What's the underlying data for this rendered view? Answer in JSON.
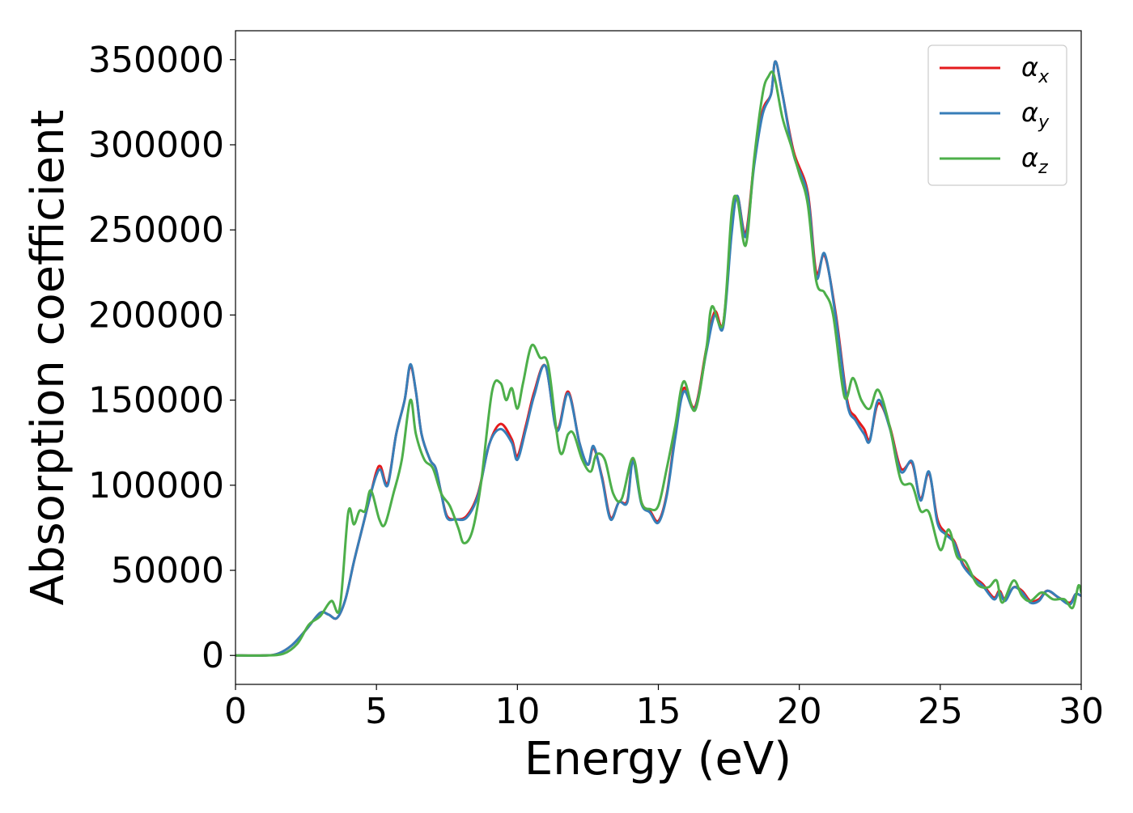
{
  "chart_data": {
    "type": "line",
    "title": "",
    "xlabel": "Energy (eV)",
    "ylabel": "Absorption coefficient",
    "xlim": [
      0,
      30
    ],
    "ylim": [
      -17000,
      367000
    ],
    "xticks": [
      0,
      5,
      10,
      15,
      20,
      25,
      30
    ],
    "xtick_labels": [
      "0",
      "5",
      "10",
      "15",
      "20",
      "25",
      "30"
    ],
    "yticks": [
      0,
      50000,
      100000,
      150000,
      200000,
      250000,
      300000,
      350000
    ],
    "ytick_labels": [
      "0",
      "50000",
      "100000",
      "150000",
      "200000",
      "250000",
      "300000",
      "350000"
    ],
    "grid": false,
    "legend_position": "top-right",
    "series": [
      {
        "name": "αx",
        "legend_main": "α",
        "legend_sub": "x",
        "color": "#e41a1c",
        "points": [
          [
            0,
            0
          ],
          [
            1,
            0
          ],
          [
            1.5,
            1000
          ],
          [
            2,
            6000
          ],
          [
            2.5,
            15000
          ],
          [
            3,
            25000
          ],
          [
            3.3,
            24000
          ],
          [
            3.6,
            22000
          ],
          [
            3.9,
            33000
          ],
          [
            4.2,
            55000
          ],
          [
            4.5,
            75000
          ],
          [
            4.8,
            95000
          ],
          [
            5,
            108000
          ],
          [
            5.15,
            111000
          ],
          [
            5.4,
            101000
          ],
          [
            5.7,
            130000
          ],
          [
            6,
            150000
          ],
          [
            6.2,
            170000
          ],
          [
            6.4,
            155000
          ],
          [
            6.6,
            130000
          ],
          [
            6.9,
            115000
          ],
          [
            7.1,
            110000
          ],
          [
            7.3,
            95000
          ],
          [
            7.5,
            82000
          ],
          [
            7.8,
            80000
          ],
          [
            8.2,
            82000
          ],
          [
            8.6,
            95000
          ],
          [
            9,
            124000
          ],
          [
            9.4,
            136000
          ],
          [
            9.8,
            127000
          ],
          [
            10,
            117000
          ],
          [
            10.3,
            135000
          ],
          [
            10.6,
            155000
          ],
          [
            11,
            170000
          ],
          [
            11.4,
            133000
          ],
          [
            11.8,
            155000
          ],
          [
            12.2,
            125000
          ],
          [
            12.5,
            112000
          ],
          [
            12.7,
            122000
          ],
          [
            13,
            105000
          ],
          [
            13.3,
            81000
          ],
          [
            13.6,
            90000
          ],
          [
            13.9,
            91000
          ],
          [
            14.1,
            115000
          ],
          [
            14.4,
            90000
          ],
          [
            14.7,
            85000
          ],
          [
            15,
            79000
          ],
          [
            15.3,
            95000
          ],
          [
            15.6,
            130000
          ],
          [
            15.9,
            157000
          ],
          [
            16.3,
            146000
          ],
          [
            16.7,
            180000
          ],
          [
            17,
            202000
          ],
          [
            17.3,
            195000
          ],
          [
            17.6,
            250000
          ],
          [
            17.8,
            270000
          ],
          [
            18.1,
            248000
          ],
          [
            18.4,
            290000
          ],
          [
            18.7,
            320000
          ],
          [
            19,
            330000
          ],
          [
            19.15,
            349000
          ],
          [
            19.4,
            330000
          ],
          [
            19.8,
            296000
          ],
          [
            20.3,
            272000
          ],
          [
            20.6,
            225000
          ],
          [
            20.9,
            235000
          ],
          [
            21.3,
            200000
          ],
          [
            21.7,
            150000
          ],
          [
            22,
            140000
          ],
          [
            22.3,
            133000
          ],
          [
            22.5,
            127000
          ],
          [
            22.8,
            148000
          ],
          [
            23.2,
            135000
          ],
          [
            23.6,
            110000
          ],
          [
            24,
            113000
          ],
          [
            24.3,
            92000
          ],
          [
            24.6,
            107000
          ],
          [
            24.9,
            80000
          ],
          [
            25.2,
            72000
          ],
          [
            25.5,
            67000
          ],
          [
            25.8,
            54000
          ],
          [
            26.2,
            46000
          ],
          [
            26.5,
            42000
          ],
          [
            26.9,
            34000
          ],
          [
            27.1,
            38000
          ],
          [
            27.3,
            33000
          ],
          [
            27.6,
            40000
          ],
          [
            27.9,
            38000
          ],
          [
            28.2,
            32000
          ],
          [
            28.5,
            33000
          ],
          [
            28.8,
            38000
          ],
          [
            29.2,
            34000
          ],
          [
            29.6,
            31000
          ],
          [
            29.8,
            36000
          ],
          [
            30,
            35000
          ]
        ]
      },
      {
        "name": "αy",
        "legend_main": "α",
        "legend_sub": "y",
        "color": "#377eb8",
        "points": [
          [
            0,
            0
          ],
          [
            1,
            0
          ],
          [
            1.5,
            1000
          ],
          [
            2,
            6000
          ],
          [
            2.5,
            15000
          ],
          [
            3,
            25000
          ],
          [
            3.3,
            24000
          ],
          [
            3.6,
            22000
          ],
          [
            3.9,
            33000
          ],
          [
            4.2,
            55000
          ],
          [
            4.5,
            75000
          ],
          [
            4.8,
            95000
          ],
          [
            5,
            106000
          ],
          [
            5.15,
            109000
          ],
          [
            5.4,
            100000
          ],
          [
            5.7,
            130000
          ],
          [
            6,
            150000
          ],
          [
            6.2,
            171000
          ],
          [
            6.4,
            155000
          ],
          [
            6.6,
            130000
          ],
          [
            6.9,
            115000
          ],
          [
            7.1,
            110000
          ],
          [
            7.3,
            95000
          ],
          [
            7.5,
            81000
          ],
          [
            7.8,
            80000
          ],
          [
            8.2,
            81000
          ],
          [
            8.6,
            94000
          ],
          [
            9,
            124000
          ],
          [
            9.4,
            133000
          ],
          [
            9.8,
            125000
          ],
          [
            10,
            115000
          ],
          [
            10.3,
            133000
          ],
          [
            10.6,
            153000
          ],
          [
            11,
            170000
          ],
          [
            11.4,
            132000
          ],
          [
            11.8,
            154000
          ],
          [
            12.2,
            125000
          ],
          [
            12.5,
            112000
          ],
          [
            12.7,
            123000
          ],
          [
            13,
            104000
          ],
          [
            13.3,
            80000
          ],
          [
            13.6,
            90000
          ],
          [
            13.9,
            90000
          ],
          [
            14.1,
            114000
          ],
          [
            14.4,
            89000
          ],
          [
            14.7,
            84000
          ],
          [
            15,
            78000
          ],
          [
            15.3,
            94000
          ],
          [
            15.6,
            128000
          ],
          [
            15.9,
            155000
          ],
          [
            16.3,
            145000
          ],
          [
            16.7,
            178000
          ],
          [
            17,
            200000
          ],
          [
            17.3,
            193000
          ],
          [
            17.6,
            248000
          ],
          [
            17.8,
            270000
          ],
          [
            18.1,
            246000
          ],
          [
            18.4,
            288000
          ],
          [
            18.7,
            318000
          ],
          [
            19,
            330000
          ],
          [
            19.15,
            349000
          ],
          [
            19.4,
            330000
          ],
          [
            19.8,
            294000
          ],
          [
            20.3,
            270000
          ],
          [
            20.6,
            222000
          ],
          [
            20.9,
            236000
          ],
          [
            21.3,
            198000
          ],
          [
            21.7,
            148000
          ],
          [
            22,
            138000
          ],
          [
            22.3,
            130000
          ],
          [
            22.5,
            126000
          ],
          [
            22.8,
            150000
          ],
          [
            23.2,
            134000
          ],
          [
            23.6,
            108000
          ],
          [
            24,
            114000
          ],
          [
            24.3,
            91000
          ],
          [
            24.6,
            108000
          ],
          [
            24.9,
            78000
          ],
          [
            25.2,
            71000
          ],
          [
            25.5,
            66000
          ],
          [
            25.8,
            53000
          ],
          [
            26.2,
            45000
          ],
          [
            26.5,
            41000
          ],
          [
            26.9,
            33000
          ],
          [
            27.1,
            37000
          ],
          [
            27.3,
            32000
          ],
          [
            27.6,
            40000
          ],
          [
            27.9,
            37000
          ],
          [
            28.2,
            31000
          ],
          [
            28.5,
            32000
          ],
          [
            28.8,
            38000
          ],
          [
            29.2,
            34000
          ],
          [
            29.6,
            30000
          ],
          [
            29.8,
            36000
          ],
          [
            30,
            35000
          ]
        ]
      },
      {
        "name": "αz",
        "legend_main": "α",
        "legend_sub": "z",
        "color": "#4daf4a",
        "points": [
          [
            0,
            0
          ],
          [
            1,
            0
          ],
          [
            1.7,
            1000
          ],
          [
            2.2,
            7000
          ],
          [
            2.6,
            18000
          ],
          [
            3,
            23000
          ],
          [
            3.4,
            32000
          ],
          [
            3.7,
            28000
          ],
          [
            4,
            84000
          ],
          [
            4.2,
            77000
          ],
          [
            4.4,
            85000
          ],
          [
            4.6,
            85000
          ],
          [
            4.8,
            97000
          ],
          [
            5.1,
            80000
          ],
          [
            5.3,
            77000
          ],
          [
            5.6,
            95000
          ],
          [
            5.9,
            115000
          ],
          [
            6.2,
            150000
          ],
          [
            6.4,
            130000
          ],
          [
            6.7,
            115000
          ],
          [
            7,
            110000
          ],
          [
            7.3,
            95000
          ],
          [
            7.6,
            88000
          ],
          [
            7.9,
            75000
          ],
          [
            8.1,
            66000
          ],
          [
            8.4,
            73000
          ],
          [
            8.7,
            100000
          ],
          [
            9.1,
            155000
          ],
          [
            9.4,
            160000
          ],
          [
            9.6,
            150000
          ],
          [
            9.8,
            157000
          ],
          [
            10,
            145000
          ],
          [
            10.2,
            160000
          ],
          [
            10.5,
            182000
          ],
          [
            10.8,
            175000
          ],
          [
            11.1,
            170000
          ],
          [
            11.5,
            120000
          ],
          [
            11.8,
            130000
          ],
          [
            12,
            130000
          ],
          [
            12.3,
            115000
          ],
          [
            12.6,
            108000
          ],
          [
            12.8,
            118000
          ],
          [
            13.1,
            115000
          ],
          [
            13.4,
            95000
          ],
          [
            13.7,
            92000
          ],
          [
            14.1,
            116000
          ],
          [
            14.4,
            90000
          ],
          [
            14.7,
            86000
          ],
          [
            15,
            88000
          ],
          [
            15.3,
            110000
          ],
          [
            15.6,
            135000
          ],
          [
            15.9,
            161000
          ],
          [
            16.3,
            144000
          ],
          [
            16.7,
            180000
          ],
          [
            16.9,
            205000
          ],
          [
            17.3,
            195000
          ],
          [
            17.6,
            260000
          ],
          [
            17.8,
            268000
          ],
          [
            18.1,
            241000
          ],
          [
            18.4,
            292000
          ],
          [
            18.7,
            330000
          ],
          [
            18.9,
            340000
          ],
          [
            19.1,
            341000
          ],
          [
            19.4,
            316000
          ],
          [
            19.7,
            300000
          ],
          [
            20,
            283000
          ],
          [
            20.3,
            265000
          ],
          [
            20.6,
            220000
          ],
          [
            20.9,
            213000
          ],
          [
            21.2,
            200000
          ],
          [
            21.6,
            152000
          ],
          [
            21.9,
            163000
          ],
          [
            22.2,
            150000
          ],
          [
            22.5,
            145000
          ],
          [
            22.8,
            156000
          ],
          [
            23.2,
            135000
          ],
          [
            23.6,
            103000
          ],
          [
            24,
            100000
          ],
          [
            24.3,
            85000
          ],
          [
            24.6,
            84000
          ],
          [
            25,
            62000
          ],
          [
            25.3,
            74000
          ],
          [
            25.6,
            58000
          ],
          [
            25.9,
            55000
          ],
          [
            26.3,
            42000
          ],
          [
            26.7,
            40000
          ],
          [
            27,
            44000
          ],
          [
            27.2,
            31000
          ],
          [
            27.6,
            44000
          ],
          [
            27.9,
            35000
          ],
          [
            28.2,
            32000
          ],
          [
            28.6,
            37000
          ],
          [
            29,
            33000
          ],
          [
            29.4,
            33000
          ],
          [
            29.7,
            28000
          ],
          [
            29.9,
            41000
          ],
          [
            30,
            37000
          ]
        ]
      }
    ]
  }
}
